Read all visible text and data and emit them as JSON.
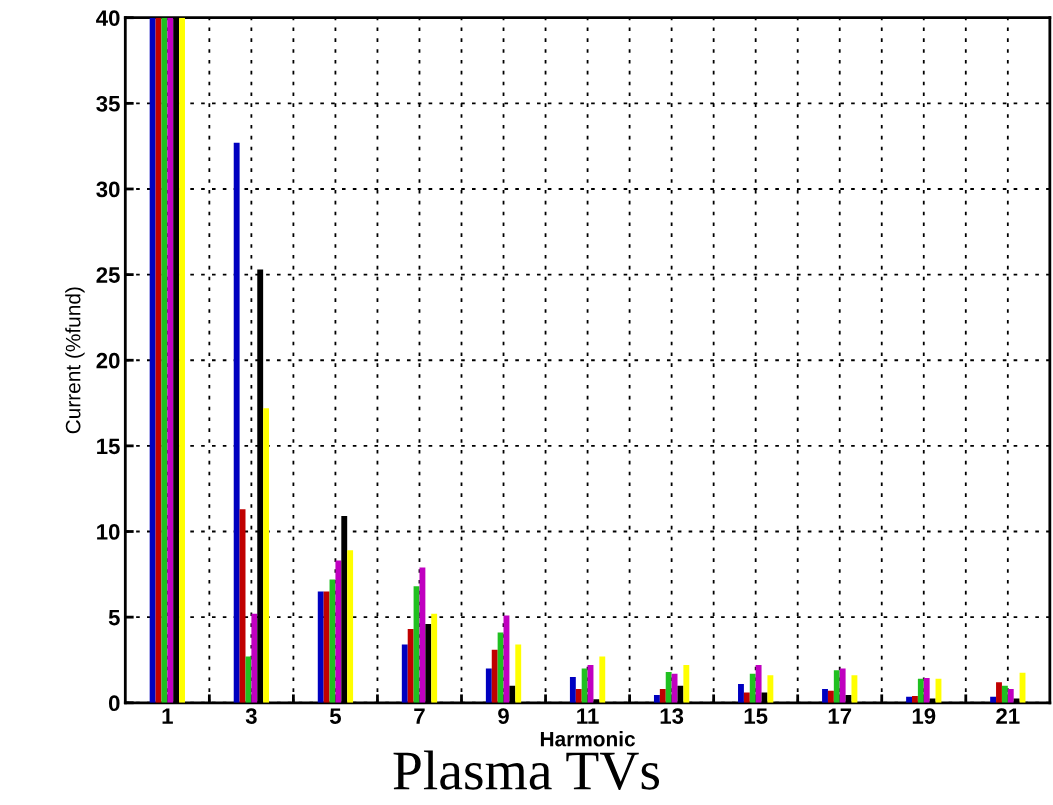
{
  "chart_data": {
    "type": "bar",
    "title": "Plasma TVs",
    "xlabel": "Harmonic",
    "ylabel": "Current (%fund)",
    "x": [
      1,
      3,
      5,
      7,
      9,
      11,
      13,
      15,
      17,
      19,
      21
    ],
    "series": [
      {
        "color": "#0000c0",
        "values": [
          40,
          32.7,
          6.5,
          3.4,
          2.0,
          1.5,
          0.45,
          1.1,
          0.8,
          0.35,
          0.35
        ]
      },
      {
        "color": "#c00000",
        "values": [
          40,
          11.3,
          6.5,
          4.3,
          3.1,
          0.8,
          0.8,
          0.6,
          0.7,
          0.4,
          1.2
        ]
      },
      {
        "color": "#20c020",
        "values": [
          40,
          2.7,
          7.2,
          6.8,
          4.1,
          2.0,
          1.8,
          1.7,
          1.9,
          1.4,
          1.0
        ]
      },
      {
        "color": "#c000c0",
        "values": [
          40,
          5.2,
          8.3,
          7.9,
          5.1,
          2.2,
          1.7,
          2.2,
          2.0,
          1.45,
          0.8
        ]
      },
      {
        "color": "#000000",
        "values": [
          40,
          25.3,
          10.9,
          4.6,
          1.0,
          0.2,
          1.0,
          0.6,
          0.45,
          0.25,
          0.25
        ]
      },
      {
        "color": "#ffff00",
        "values": [
          40,
          17.2,
          8.9,
          5.2,
          3.4,
          2.7,
          2.2,
          1.6,
          1.6,
          1.4,
          1.75
        ]
      }
    ],
    "xlim": [
      0,
      22
    ],
    "xticks": [
      1,
      {
        "value": 2,
        "label": null
      },
      3,
      {
        "value": 4,
        "label": null
      },
      5,
      {
        "value": 6,
        "label": null
      },
      7,
      {
        "value": 8,
        "label": null
      },
      9,
      {
        "value": 10,
        "label": null
      },
      11,
      {
        "value": 12,
        "label": null
      },
      13,
      {
        "value": 14,
        "label": null
      },
      15,
      {
        "value": 16,
        "label": null
      },
      17,
      {
        "value": 18,
        "label": null
      },
      19,
      {
        "value": 20,
        "label": null
      },
      21
    ],
    "ylim": [
      0,
      40
    ],
    "yticks": [
      0,
      5,
      10,
      15,
      20,
      25,
      30,
      35,
      40
    ],
    "grid": true
  }
}
